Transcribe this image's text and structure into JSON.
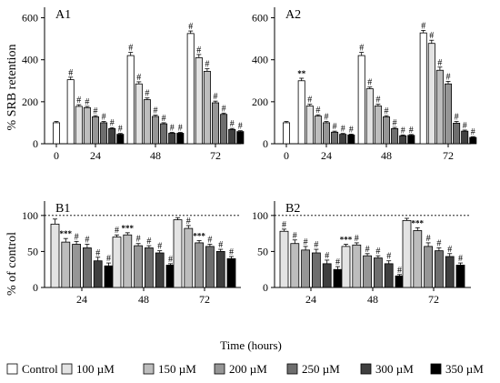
{
  "figure": {
    "xlabel": "Time (hours)",
    "legend": [
      "Control",
      "100 µM",
      "150 µM",
      "200 µM",
      "250 µM",
      "300 µM",
      "350 µM"
    ],
    "colors": [
      "#ffffff",
      "#e3e3e3",
      "#bdbdbd",
      "#969696",
      "#6e6e6e",
      "#3f3f3f",
      "#000000"
    ]
  },
  "chart_data": [
    {
      "panel_label": "A1",
      "type": "bar",
      "ylabel": "% SRB retention",
      "ylim": [
        0,
        650
      ],
      "yticks": [
        0,
        200,
        400,
        600
      ],
      "legend_position": "bottom",
      "groups": [
        {
          "label": "0",
          "values": [
            100
          ],
          "errors": [
            6
          ],
          "annotations": [
            ""
          ]
        },
        {
          "label": "24",
          "values": [
            305,
            178,
            172,
            128,
            100,
            72,
            45
          ],
          "errors": [
            12,
            8,
            6,
            6,
            6,
            5,
            4
          ],
          "annotations": [
            "#",
            "#",
            "#",
            "#",
            "#",
            "#",
            "#"
          ]
        },
        {
          "label": "48",
          "values": [
            420,
            285,
            210,
            130,
            95,
            50,
            50
          ],
          "errors": [
            15,
            10,
            8,
            6,
            5,
            4,
            4
          ],
          "annotations": [
            "#",
            "#",
            "#",
            "#",
            "#",
            "#",
            "#"
          ]
        },
        {
          "label": "72",
          "values": [
            525,
            410,
            345,
            195,
            140,
            68,
            58
          ],
          "errors": [
            12,
            15,
            12,
            8,
            6,
            5,
            4
          ],
          "annotations": [
            "#",
            "#",
            "#",
            "#",
            "#",
            "#",
            "#"
          ]
        }
      ]
    },
    {
      "panel_label": "A2",
      "type": "bar",
      "ylim": [
        0,
        650
      ],
      "yticks": [
        0,
        200,
        400,
        600
      ],
      "groups": [
        {
          "label": "0",
          "values": [
            100
          ],
          "errors": [
            6
          ],
          "annotations": [
            ""
          ]
        },
        {
          "label": "24",
          "values": [
            300,
            180,
            132,
            100,
            55,
            45,
            42
          ],
          "errors": [
            12,
            8,
            6,
            6,
            5,
            4,
            4
          ],
          "annotations": [
            "**",
            "#",
            "#",
            "#",
            "#",
            "#",
            "#"
          ]
        },
        {
          "label": "48",
          "values": [
            420,
            262,
            180,
            128,
            72,
            38,
            40
          ],
          "errors": [
            15,
            8,
            8,
            6,
            6,
            4,
            4
          ],
          "annotations": [
            "#",
            "#",
            "#",
            "#",
            "#",
            "#",
            "#"
          ]
        },
        {
          "label": "72",
          "values": [
            528,
            478,
            350,
            285,
            98,
            60,
            30
          ],
          "errors": [
            12,
            15,
            15,
            12,
            8,
            5,
            4
          ],
          "annotations": [
            "#",
            "#",
            "#",
            "#",
            "#",
            "#",
            "#"
          ]
        }
      ]
    },
    {
      "panel_label": "B1",
      "type": "bar",
      "ylabel": "% of control",
      "ylim": [
        0,
        120
      ],
      "yticks": [
        0,
        50,
        100
      ],
      "reference_line": 100,
      "groups": [
        {
          "label": "24",
          "values": [
            88,
            63,
            60,
            55,
            37,
            30
          ],
          "errors": [
            7,
            5,
            4,
            5,
            5,
            4
          ],
          "annotations": [
            "",
            "***",
            "#",
            "#",
            "#",
            "#"
          ]
        },
        {
          "label": "48",
          "values": [
            70,
            73,
            58,
            55,
            48,
            31
          ],
          "errors": [
            3,
            3,
            3,
            3,
            3,
            2
          ],
          "annotations": [
            "#",
            "***",
            "#",
            "#",
            "#",
            "#"
          ]
        },
        {
          "label": "72",
          "values": [
            94,
            82,
            62,
            57,
            50,
            40
          ],
          "errors": [
            3,
            4,
            3,
            3,
            3,
            3
          ],
          "annotations": [
            "",
            "#",
            "***",
            "#",
            "#",
            "#"
          ]
        }
      ]
    },
    {
      "panel_label": "B2",
      "type": "bar",
      "ylim": [
        0,
        120
      ],
      "yticks": [
        0,
        50,
        100
      ],
      "reference_line": 100,
      "groups": [
        {
          "label": "24",
          "values": [
            78,
            61,
            52,
            48,
            33,
            25
          ],
          "errors": [
            3,
            5,
            5,
            5,
            5,
            4
          ],
          "annotations": [
            "#",
            "#",
            "#",
            "#",
            "#",
            "#"
          ]
        },
        {
          "label": "48",
          "values": [
            57,
            59,
            44,
            41,
            33,
            16
          ],
          "errors": [
            3,
            3,
            3,
            3,
            4,
            2
          ],
          "annotations": [
            "***",
            "#",
            "#",
            "#",
            "#",
            "#"
          ]
        },
        {
          "label": "72",
          "values": [
            93,
            79,
            57,
            51,
            43,
            31
          ],
          "errors": [
            3,
            4,
            5,
            4,
            4,
            3
          ],
          "annotations": [
            "",
            "***",
            "#",
            "#",
            "#",
            "#"
          ]
        }
      ]
    }
  ]
}
